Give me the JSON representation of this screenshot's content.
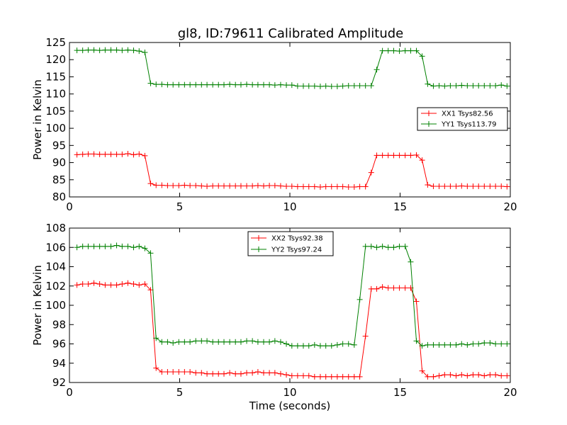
{
  "title": "gl8, ID:79611 Calibrated Amplitude",
  "colors": {
    "xx": "#ff0000",
    "yy": "#008000",
    "axes": "#000000",
    "background": "#ffffff"
  },
  "chart_data": [
    {
      "type": "line",
      "title": "gl8, ID:79611 Calibrated Amplitude",
      "xlabel": "",
      "ylabel": "Power in Kelvin",
      "xlim": [
        0,
        20
      ],
      "ylim": [
        80,
        125
      ],
      "xticks": [
        0,
        5,
        10,
        15,
        20
      ],
      "yticks": [
        80,
        85,
        90,
        95,
        100,
        105,
        110,
        115,
        120,
        125
      ],
      "grid": false,
      "legend_position": "center-right",
      "marker": "+",
      "x": [
        0.34,
        0.6,
        0.85,
        1.11,
        1.37,
        1.62,
        1.88,
        2.14,
        2.39,
        2.65,
        2.91,
        3.16,
        3.42,
        3.68,
        3.93,
        4.19,
        4.45,
        4.7,
        4.96,
        5.22,
        5.47,
        5.73,
        5.99,
        6.24,
        6.5,
        6.76,
        7.01,
        7.27,
        7.53,
        7.78,
        8.04,
        8.3,
        8.55,
        8.81,
        9.07,
        9.32,
        9.58,
        9.84,
        10.09,
        10.35,
        10.61,
        10.86,
        11.12,
        11.38,
        11.63,
        11.89,
        12.15,
        12.4,
        12.66,
        12.92,
        13.17,
        13.43,
        13.69,
        13.94,
        14.2,
        14.46,
        14.71,
        14.97,
        15.23,
        15.48,
        15.74,
        16.0,
        16.25,
        16.51,
        16.77,
        17.02,
        17.28,
        17.54,
        17.79,
        18.05,
        18.31,
        18.56,
        18.82,
        19.08,
        19.33,
        19.59,
        19.85
      ],
      "series": [
        {
          "name": "XX1 Tsys82.56",
          "color": "#ff0000",
          "values": [
            92.3,
            92.4,
            92.5,
            92.5,
            92.4,
            92.4,
            92.4,
            92.4,
            92.4,
            92.6,
            92.3,
            92.5,
            92.0,
            83.9,
            83.4,
            83.4,
            83.3,
            83.3,
            83.3,
            83.4,
            83.3,
            83.3,
            83.2,
            83.1,
            83.2,
            83.2,
            83.2,
            83.2,
            83.2,
            83.2,
            83.2,
            83.2,
            83.3,
            83.2,
            83.3,
            83.3,
            83.2,
            83.1,
            83.1,
            83.0,
            83.0,
            83.0,
            83.0,
            82.9,
            83.0,
            83.0,
            83.0,
            83.0,
            82.9,
            82.9,
            83.0,
            83.0,
            87.1,
            92.1,
            92.1,
            92.1,
            92.1,
            92.1,
            92.1,
            92.1,
            92.2,
            90.7,
            83.5,
            83.1,
            83.1,
            83.1,
            83.1,
            83.1,
            83.2,
            83.1,
            83.1,
            83.1,
            83.1,
            83.1,
            83.1,
            83.1,
            83.0
          ]
        },
        {
          "name": "YY1 Tsys113.79",
          "color": "#008000",
          "values": [
            122.7,
            122.7,
            122.8,
            122.8,
            122.7,
            122.8,
            122.8,
            122.8,
            122.7,
            122.8,
            122.7,
            122.5,
            122.1,
            113.1,
            112.8,
            112.8,
            112.7,
            112.7,
            112.7,
            112.7,
            112.7,
            112.7,
            112.7,
            112.7,
            112.7,
            112.7,
            112.7,
            112.8,
            112.7,
            112.7,
            112.8,
            112.7,
            112.7,
            112.7,
            112.7,
            112.6,
            112.7,
            112.6,
            112.6,
            112.3,
            112.3,
            112.3,
            112.3,
            112.2,
            112.3,
            112.2,
            112.2,
            112.3,
            112.4,
            112.4,
            112.4,
            112.4,
            112.4,
            117.1,
            122.6,
            122.6,
            122.6,
            122.5,
            122.6,
            122.6,
            122.6,
            121.0,
            112.9,
            112.3,
            112.4,
            112.3,
            112.4,
            112.4,
            112.5,
            112.4,
            112.4,
            112.4,
            112.4,
            112.4,
            112.4,
            112.6,
            112.3
          ]
        }
      ]
    },
    {
      "type": "line",
      "title": "",
      "xlabel": "Time (seconds)",
      "ylabel": "Power in Kelvin",
      "xlim": [
        0,
        20
      ],
      "ylim": [
        92,
        108
      ],
      "xticks": [
        0,
        5,
        10,
        15,
        20
      ],
      "yticks": [
        92,
        94,
        96,
        98,
        100,
        102,
        104,
        106,
        108
      ],
      "grid": false,
      "legend_position": "top-center",
      "marker": "+",
      "x": [
        0.34,
        0.6,
        0.85,
        1.11,
        1.37,
        1.62,
        1.88,
        2.14,
        2.39,
        2.65,
        2.91,
        3.16,
        3.42,
        3.68,
        3.93,
        4.19,
        4.45,
        4.7,
        4.96,
        5.22,
        5.47,
        5.73,
        5.99,
        6.24,
        6.5,
        6.76,
        7.01,
        7.27,
        7.53,
        7.78,
        8.04,
        8.3,
        8.55,
        8.81,
        9.07,
        9.32,
        9.58,
        9.84,
        10.09,
        10.35,
        10.61,
        10.86,
        11.12,
        11.38,
        11.63,
        11.89,
        12.15,
        12.4,
        12.66,
        12.92,
        13.17,
        13.43,
        13.69,
        13.94,
        14.2,
        14.46,
        14.71,
        14.97,
        15.23,
        15.48,
        15.74,
        16.0,
        16.25,
        16.51,
        16.77,
        17.02,
        17.28,
        17.54,
        17.79,
        18.05,
        18.31,
        18.56,
        18.82,
        19.08,
        19.33,
        19.59,
        19.85
      ],
      "series": [
        {
          "name": "XX2 Tsys92.38",
          "color": "#ff0000",
          "values": [
            102.1,
            102.2,
            102.2,
            102.3,
            102.2,
            102.1,
            102.1,
            102.1,
            102.2,
            102.3,
            102.2,
            102.1,
            102.2,
            101.6,
            93.5,
            93.1,
            93.1,
            93.1,
            93.1,
            93.1,
            93.1,
            93.0,
            93.0,
            92.9,
            92.9,
            92.9,
            92.9,
            93.0,
            92.9,
            92.9,
            93.0,
            93.0,
            93.1,
            93.0,
            93.0,
            93.0,
            92.9,
            92.8,
            92.7,
            92.7,
            92.7,
            92.7,
            92.6,
            92.6,
            92.6,
            92.6,
            92.6,
            92.6,
            92.6,
            92.6,
            92.6,
            96.8,
            101.7,
            101.7,
            101.9,
            101.8,
            101.8,
            101.8,
            101.8,
            101.8,
            100.4,
            93.2,
            92.6,
            92.6,
            92.7,
            92.8,
            92.8,
            92.7,
            92.8,
            92.7,
            92.8,
            92.8,
            92.7,
            92.8,
            92.8,
            92.7,
            92.7
          ]
        },
        {
          "name": "YY2 Tsys97.24",
          "color": "#008000",
          "values": [
            106.0,
            106.1,
            106.1,
            106.1,
            106.1,
            106.1,
            106.1,
            106.2,
            106.1,
            106.1,
            106.0,
            106.1,
            105.9,
            105.4,
            96.6,
            96.2,
            96.2,
            96.1,
            96.2,
            96.2,
            96.2,
            96.3,
            96.3,
            96.3,
            96.2,
            96.2,
            96.2,
            96.2,
            96.2,
            96.2,
            96.3,
            96.3,
            96.2,
            96.2,
            96.2,
            96.3,
            96.2,
            96.0,
            95.8,
            95.8,
            95.8,
            95.8,
            95.9,
            95.8,
            95.8,
            95.8,
            95.9,
            96.0,
            96.0,
            95.9,
            100.6,
            106.1,
            106.1,
            106.0,
            106.1,
            106.0,
            106.0,
            106.1,
            106.1,
            104.5,
            96.3,
            95.8,
            95.9,
            95.9,
            95.9,
            95.9,
            95.9,
            95.9,
            96.0,
            95.9,
            96.0,
            96.0,
            96.1,
            96.1,
            96.0,
            96.0,
            96.0
          ]
        }
      ]
    }
  ]
}
